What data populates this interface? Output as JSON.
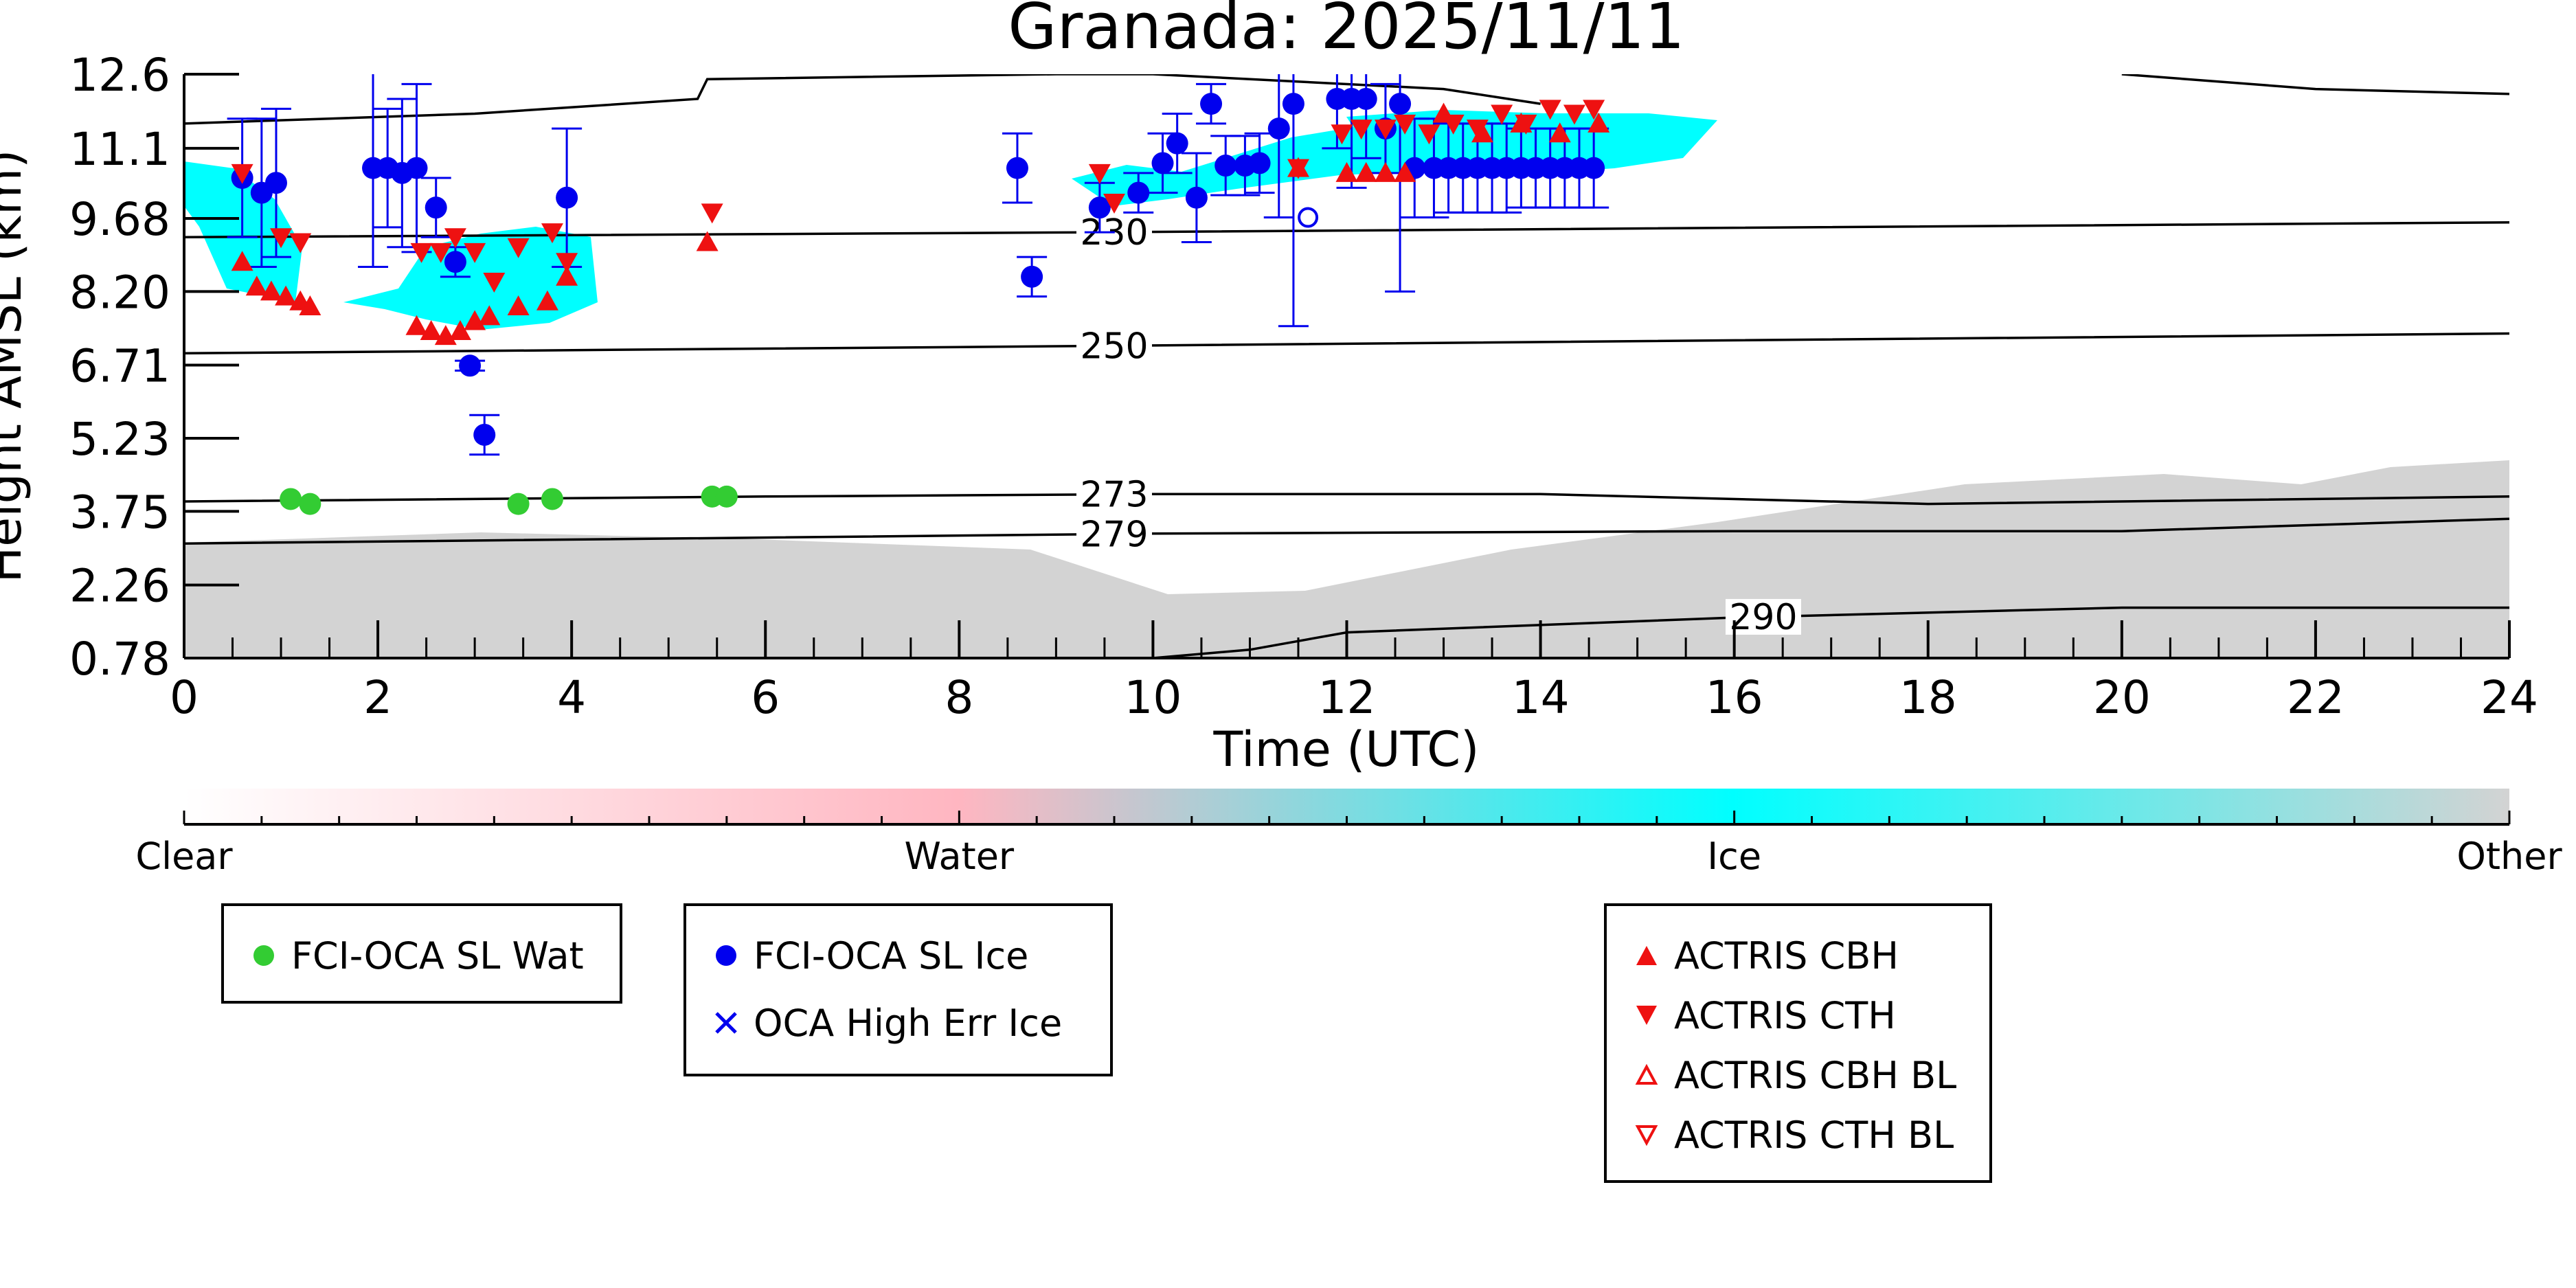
{
  "chart_data": {
    "type": "scatter",
    "title": "Granada: 2025/11/11",
    "xlabel": "Time (UTC)",
    "ylabel": "Height AMSL (km)",
    "xlim": [
      0,
      24
    ],
    "ylim": [
      0.78,
      12.6
    ],
    "x_ticks": [
      "0",
      "2",
      "4",
      "6",
      "8",
      "10",
      "12",
      "14",
      "16",
      "18",
      "20",
      "22",
      "24"
    ],
    "y_ticks": [
      "0.78",
      "2.26",
      "3.75",
      "5.23",
      "6.71",
      "8.20",
      "9.68",
      "11.1",
      "12.6"
    ],
    "colorbar": {
      "labels": [
        "Clear",
        "Water",
        "Ice",
        "Other"
      ],
      "colors": [
        "#ffffff",
        "#ffb6c1",
        "#00ffff",
        "#d3d3d3"
      ]
    },
    "isotherms": [
      {
        "label": "230",
        "x": [
          0,
          9.5,
          24
        ],
        "y": [
          9.3,
          9.4,
          9.6
        ]
      },
      {
        "label": "250",
        "x": [
          0,
          9.5,
          24
        ],
        "y": [
          6.95,
          7.1,
          7.35
        ]
      },
      {
        "label": "273",
        "x": [
          0,
          6,
          10,
          14,
          18,
          24
        ],
        "y": [
          3.95,
          4.05,
          4.1,
          4.1,
          3.9,
          4.05
        ]
      },
      {
        "label": "279",
        "x": [
          0,
          10,
          16,
          20,
          24
        ],
        "y": [
          3.1,
          3.3,
          3.35,
          3.35,
          3.6
        ]
      },
      {
        "label": "290",
        "x": [
          10,
          11,
          12,
          16,
          20,
          24
        ],
        "y": [
          0.78,
          0.95,
          1.3,
          1.6,
          1.8,
          1.8
        ]
      },
      {
        "label": "",
        "x": [
          0,
          3,
          5.3,
          5.4,
          9,
          10,
          13,
          14
        ],
        "y": [
          11.6,
          11.8,
          12.1,
          12.5,
          12.6,
          12.6,
          12.3,
          12.0
        ]
      },
      {
        "label": "",
        "x": [
          20,
          22,
          24
        ],
        "y": [
          12.6,
          12.3,
          12.2
        ]
      }
    ],
    "series": [
      {
        "name": "FCI-OCA SL Wat",
        "color": "#33cc33",
        "marker": "circle",
        "x": [
          1.1,
          1.3,
          3.45,
          3.8,
          5.45,
          5.6
        ],
        "y": [
          4.0,
          3.9,
          3.9,
          4.0,
          4.05,
          4.05
        ]
      },
      {
        "name": "FCI-OCA SL Ice",
        "color": "#0000ee",
        "marker": "circle",
        "x": [
          0.6,
          0.8,
          0.95,
          1.95,
          2.1,
          2.25,
          2.4,
          2.6,
          2.8,
          2.95,
          3.1,
          3.95,
          8.6,
          8.75,
          9.45,
          9.85,
          10.1,
          10.25,
          10.45,
          10.6,
          10.75,
          10.95,
          11.1,
          11.3,
          11.45,
          11.9,
          12.05,
          12.2,
          12.4,
          12.55,
          12.7,
          12.9,
          13.05,
          13.2,
          13.35,
          13.5,
          13.65,
          13.8,
          13.95,
          14.1,
          14.25,
          14.4,
          14.55
        ],
        "y": [
          10.5,
          10.2,
          10.4,
          10.7,
          10.7,
          10.6,
          10.7,
          9.9,
          8.8,
          6.7,
          5.3,
          10.1,
          10.7,
          8.5,
          9.9,
          10.2,
          10.8,
          11.2,
          10.1,
          12.0,
          10.75,
          10.75,
          10.8,
          11.5,
          12.0,
          12.1,
          12.1,
          12.1,
          11.5,
          12.0,
          10.7,
          10.7,
          10.7,
          10.7,
          10.7,
          10.7,
          10.7,
          10.7,
          10.7,
          10.7,
          10.7,
          10.7,
          10.7
        ],
        "yerr": [
          1.2,
          1.5,
          1.5,
          2.0,
          1.2,
          1.5,
          1.7,
          0.6,
          0.3,
          0.1,
          0.4,
          1.4,
          0.7,
          0.4,
          0.5,
          0.4,
          0.6,
          0.6,
          0.9,
          0.4,
          0.6,
          0.6,
          0.6,
          1.8,
          4.5,
          1.0,
          1.8,
          1.2,
          0.9,
          3.8,
          1.0,
          1.0,
          0.9,
          0.9,
          0.9,
          0.9,
          0.9,
          0.8,
          0.8,
          0.8,
          0.8,
          0.8,
          0.8
        ]
      },
      {
        "name": "OCA High Err Ice",
        "color": "#0000ee",
        "marker": "x",
        "x": [
          11.6
        ],
        "y": [
          9.7
        ]
      },
      {
        "name": "ACTRIS CBH",
        "color": "#ee1111",
        "marker": "triangle-up",
        "x": [
          0.6,
          0.75,
          0.9,
          1.05,
          1.2,
          1.3,
          2.4,
          2.55,
          2.7,
          2.85,
          3.0,
          3.15,
          3.45,
          3.75,
          3.95,
          5.4,
          11.5,
          12.0,
          12.2,
          12.4,
          12.6,
          13.0,
          13.4,
          13.8,
          14.2,
          14.6
        ],
        "y": [
          8.8,
          8.3,
          8.2,
          8.1,
          8.0,
          7.9,
          7.5,
          7.4,
          7.3,
          7.4,
          7.6,
          7.7,
          7.9,
          8.0,
          8.5,
          9.2,
          10.7,
          10.6,
          10.6,
          10.6,
          10.6,
          11.8,
          11.4,
          11.6,
          11.4,
          11.6
        ]
      },
      {
        "name": "ACTRIS CTH",
        "color": "#ee1111",
        "marker": "triangle-down",
        "x": [
          0.6,
          1.0,
          1.2,
          2.45,
          2.65,
          2.8,
          3.0,
          3.2,
          3.45,
          3.8,
          3.95,
          5.45,
          9.45,
          9.6,
          11.5,
          11.95,
          12.15,
          12.4,
          12.6,
          12.85,
          13.1,
          13.35,
          13.6,
          13.85,
          14.1,
          14.35,
          14.55
        ],
        "y": [
          10.6,
          9.3,
          9.2,
          9.0,
          9.0,
          9.3,
          9.0,
          8.4,
          9.1,
          9.4,
          8.8,
          9.8,
          10.6,
          10.0,
          10.7,
          11.4,
          11.5,
          11.5,
          11.6,
          11.4,
          11.6,
          11.5,
          11.8,
          11.6,
          11.9,
          11.8,
          11.9
        ]
      },
      {
        "name": "ACTRIS CBH BL",
        "color": "#ee1111",
        "marker": "triangle-up-open",
        "x": [],
        "y": []
      },
      {
        "name": "ACTRIS CTH BL",
        "color": "#ee1111",
        "marker": "triangle-down-open",
        "x": [],
        "y": []
      }
    ]
  },
  "legends": [
    {
      "items": [
        "FCI-OCA SL Wat"
      ]
    },
    {
      "items": [
        "FCI-OCA SL Ice",
        "OCA High Err Ice"
      ]
    },
    {
      "items": [
        "ACTRIS CBH",
        "ACTRIS CTH",
        "ACTRIS CBH BL",
        "ACTRIS CTH BL"
      ]
    }
  ]
}
